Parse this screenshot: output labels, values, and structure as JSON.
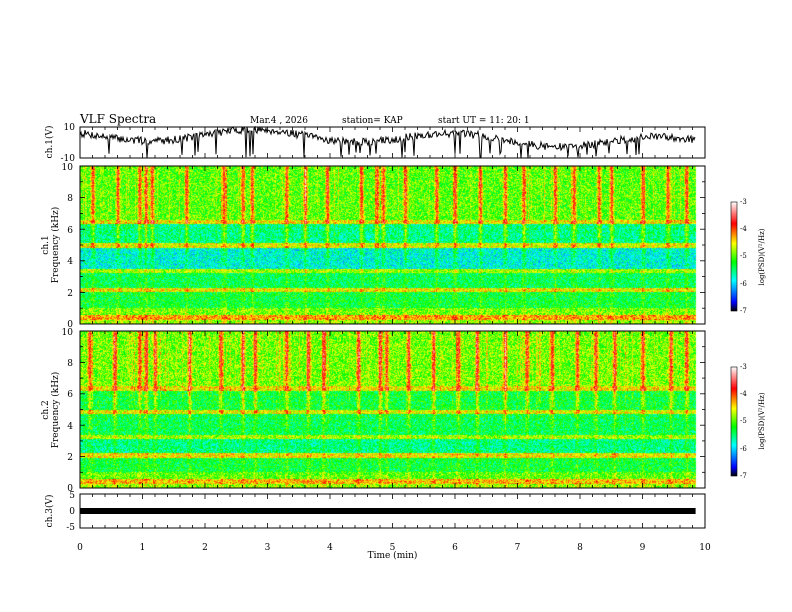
{
  "header": {
    "title": "VLF Spectra",
    "date": "Mar.4  , 2026",
    "station": "station= KAP",
    "start_ut": "start  UT  =   11: 20: 1"
  },
  "chart_data": [
    {
      "type": "line",
      "panel": "ch1-waveform",
      "ylabel": "ch.1(V)",
      "ylim": [
        -10,
        10
      ],
      "yticks": [
        "10",
        "-10"
      ],
      "xlim": [
        0,
        10
      ],
      "end_time_min": 9.85,
      "waveform": {
        "mean": 2.5,
        "amplitude": 6.0,
        "noise": 2.5,
        "seed": 7
      }
    },
    {
      "type": "heatmap",
      "panel": "ch1-spectrogram",
      "ylabel": "ch.1",
      "ylabel2": "Frequency (kHz)",
      "ylim": [
        0,
        10
      ],
      "yticks": [
        "0",
        "2",
        "4",
        "6",
        "8",
        "10"
      ],
      "xlim": [
        0,
        10
      ],
      "end_time_min": 9.85,
      "seed": 11,
      "burst_times_min": [
        0.2,
        0.6,
        0.95,
        1.05,
        1.15,
        1.7,
        2.3,
        2.6,
        2.75,
        3.3,
        3.6,
        3.95,
        4.5,
        4.75,
        4.85,
        5.2,
        5.7,
        6.0,
        6.4,
        6.8,
        7.1,
        7.6,
        7.9,
        8.3,
        8.5,
        9.0,
        9.4,
        9.7
      ],
      "bands_khz": [
        {
          "lo": 0.0,
          "hi": 0.25,
          "level": 0.55
        },
        {
          "lo": 0.25,
          "hi": 0.6,
          "level": 0.68
        },
        {
          "lo": 0.6,
          "hi": 1.0,
          "level": 0.52
        },
        {
          "lo": 1.0,
          "hi": 2.0,
          "level": 0.42
        },
        {
          "lo": 2.0,
          "hi": 2.3,
          "level": 0.62
        },
        {
          "lo": 2.3,
          "hi": 3.2,
          "level": 0.4
        },
        {
          "lo": 3.2,
          "hi": 3.5,
          "level": 0.55
        },
        {
          "lo": 3.5,
          "hi": 4.8,
          "level": 0.3
        },
        {
          "lo": 4.8,
          "hi": 5.1,
          "level": 0.6
        },
        {
          "lo": 5.1,
          "hi": 6.3,
          "level": 0.36
        },
        {
          "lo": 6.3,
          "hi": 6.6,
          "level": 0.62
        },
        {
          "lo": 6.6,
          "hi": 10.0,
          "level": 0.5
        }
      ],
      "colorbar": {
        "label": "log(PSD)(V²/Hz)",
        "range": [
          -7,
          -3
        ],
        "ticks": [
          "-3",
          "-4",
          "-5",
          "-6",
          "-7"
        ]
      }
    },
    {
      "type": "heatmap",
      "panel": "ch2-spectrogram",
      "ylabel": "ch.2",
      "ylabel2": "Frequency (kHz)",
      "ylim": [
        0,
        10
      ],
      "yticks": [
        "0",
        "2",
        "4",
        "6",
        "8",
        "10"
      ],
      "xlim": [
        0,
        10
      ],
      "end_time_min": 9.85,
      "seed": 23,
      "burst_times_min": [
        0.15,
        0.55,
        0.95,
        1.05,
        1.2,
        1.75,
        2.25,
        2.6,
        2.8,
        3.3,
        3.65,
        3.9,
        4.45,
        4.8,
        4.9,
        5.25,
        5.65,
        6.05,
        6.35,
        6.8,
        7.15,
        7.55,
        7.95,
        8.25,
        8.55,
        9.0,
        9.45,
        9.7
      ],
      "bands_khz": [
        {
          "lo": 0.0,
          "hi": 0.25,
          "level": 0.55
        },
        {
          "lo": 0.25,
          "hi": 0.6,
          "level": 0.66
        },
        {
          "lo": 0.6,
          "hi": 1.0,
          "level": 0.5
        },
        {
          "lo": 1.0,
          "hi": 1.9,
          "level": 0.42
        },
        {
          "lo": 1.9,
          "hi": 2.2,
          "level": 0.62
        },
        {
          "lo": 2.2,
          "hi": 3.1,
          "level": 0.36
        },
        {
          "lo": 3.1,
          "hi": 3.4,
          "level": 0.55
        },
        {
          "lo": 3.4,
          "hi": 4.7,
          "level": 0.4
        },
        {
          "lo": 4.7,
          "hi": 5.0,
          "level": 0.6
        },
        {
          "lo": 5.0,
          "hi": 6.2,
          "level": 0.42
        },
        {
          "lo": 6.2,
          "hi": 6.5,
          "level": 0.62
        },
        {
          "lo": 6.5,
          "hi": 10.0,
          "level": 0.52
        }
      ],
      "colorbar": {
        "label": "log(PSD)(V²/Hz)",
        "range": [
          -7,
          -3
        ],
        "ticks": [
          "-3",
          "-4",
          "-5",
          "-6",
          "-7"
        ]
      }
    },
    {
      "type": "line",
      "panel": "ch3-waveform",
      "ylabel": "ch.3(V)",
      "ylim": [
        -5,
        5
      ],
      "yticks": [
        "5",
        "0",
        "-5"
      ],
      "xlim": [
        0,
        10
      ],
      "end_time_min": 9.85,
      "constant_value": 0
    }
  ],
  "time_axis": {
    "label": "Time (min)",
    "ticks": [
      "0",
      "1",
      "2",
      "3",
      "4",
      "5",
      "6",
      "7",
      "8",
      "9",
      "10"
    ]
  }
}
